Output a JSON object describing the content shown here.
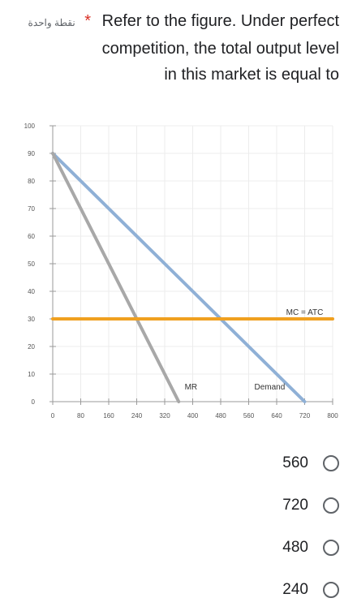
{
  "question": {
    "meta": "نقطة واحدة",
    "required": "*",
    "line1": "Refer to the figure. Under perfect",
    "line2": "competition, the total output level",
    "line3": "in this market is equal to"
  },
  "chart_data": {
    "type": "line",
    "xlim": [
      0,
      800
    ],
    "ylim": [
      0,
      100
    ],
    "x_ticks": [
      0,
      80,
      160,
      240,
      320,
      400,
      480,
      560,
      640,
      720,
      800
    ],
    "y_ticks": [
      0,
      10,
      20,
      30,
      40,
      50,
      60,
      70,
      80,
      90,
      100
    ],
    "grid": true,
    "series": [
      {
        "name": "Demand",
        "color": "#8fb0d6",
        "points": [
          [
            0,
            90
          ],
          [
            720,
            0
          ]
        ]
      },
      {
        "name": "MR",
        "color": "#a8a8a8",
        "points": [
          [
            0,
            90
          ],
          [
            360,
            0
          ]
        ]
      },
      {
        "name": "MC = ATC",
        "color": "#f0a020",
        "points": [
          [
            0,
            30
          ],
          [
            800,
            30
          ]
        ]
      }
    ],
    "labels": [
      {
        "text": "MC = ATC",
        "x": 720,
        "y": 30
      },
      {
        "text": "MR",
        "x": 395,
        "y": 3
      },
      {
        "text": "Demand",
        "x": 620,
        "y": 3
      }
    ]
  },
  "options": [
    {
      "label": "560"
    },
    {
      "label": "720"
    },
    {
      "label": "480"
    },
    {
      "label": "240"
    }
  ]
}
